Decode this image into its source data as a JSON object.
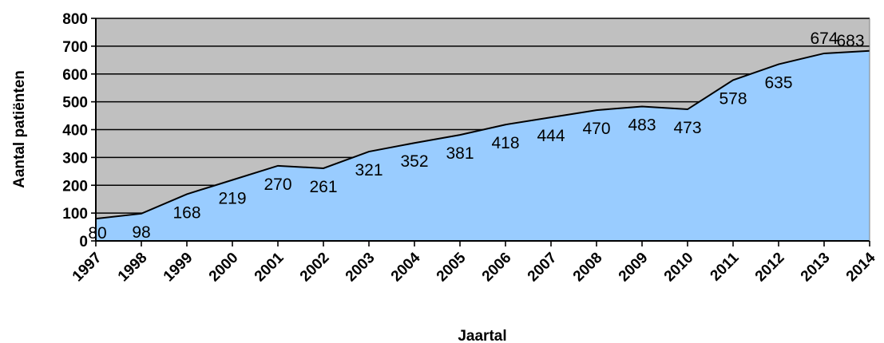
{
  "chart_data": {
    "type": "area",
    "title": "",
    "xlabel": "Jaartal",
    "ylabel": "Aantal patiënten",
    "categories": [
      "1997",
      "1998",
      "1999",
      "2000",
      "2001",
      "2002",
      "2003",
      "2004",
      "2005",
      "2006",
      "2007",
      "2008",
      "2009",
      "2010",
      "2011",
      "2012",
      "2013",
      "2014"
    ],
    "values": [
      80,
      98,
      168,
      219,
      270,
      261,
      321,
      352,
      381,
      418,
      444,
      470,
      483,
      473,
      578,
      635,
      674,
      683
    ],
    "ylim": [
      0,
      800
    ],
    "yticks": [
      "0",
      "100",
      "200",
      "300",
      "400",
      "500",
      "600",
      "700",
      "800"
    ],
    "grid": true,
    "legend": "none",
    "colors": {
      "plot_background": "#c0c0c0",
      "area_fill": "#99ccff",
      "line": "#000000",
      "gridline": "#000000"
    }
  }
}
